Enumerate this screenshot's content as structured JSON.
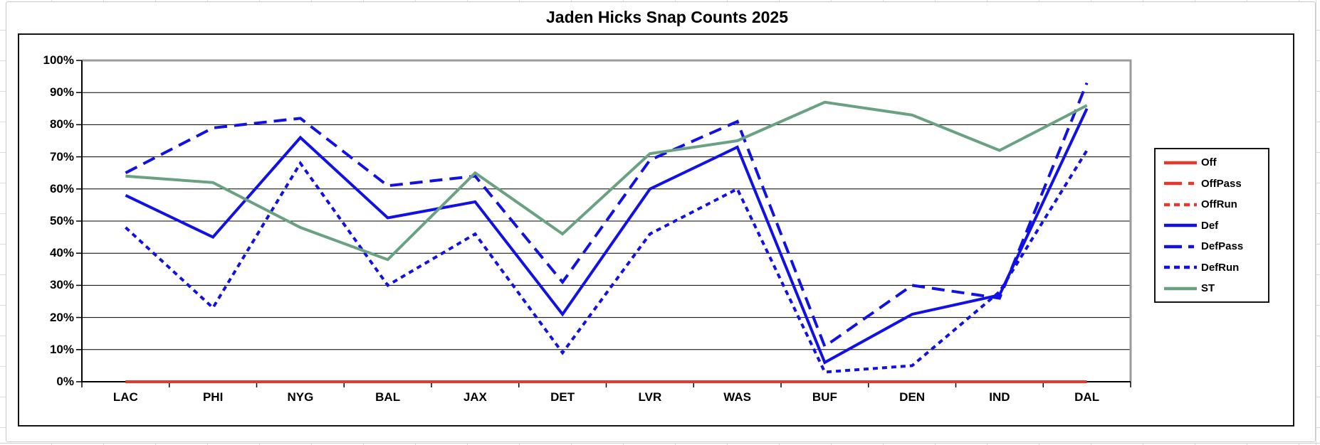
{
  "title": "Jaden Hicks Snap Counts 2025",
  "chart_data": {
    "type": "line",
    "title": "Jaden Hicks Snap Counts 2025",
    "categories": [
      "LAC",
      "PHI",
      "NYG",
      "BAL",
      "JAX",
      "DET",
      "LVR",
      "WAS",
      "BUF",
      "DEN",
      "IND",
      "DAL"
    ],
    "series": [
      {
        "name": "Off",
        "color": "#e4392b",
        "dash": "solid",
        "values": [
          0,
          0,
          0,
          0,
          0,
          0,
          0,
          0,
          0,
          0,
          0,
          0
        ]
      },
      {
        "name": "OffPass",
        "color": "#e4392b",
        "dash": "long-dash",
        "values": [
          0,
          0,
          0,
          0,
          0,
          0,
          0,
          0,
          0,
          0,
          0,
          0
        ]
      },
      {
        "name": "OffRun",
        "color": "#e4392b",
        "dash": "short-dash",
        "values": [
          0,
          0,
          0,
          0,
          0,
          0,
          0,
          0,
          0,
          0,
          0,
          0
        ]
      },
      {
        "name": "Def",
        "color": "#1111e6",
        "dash": "solid",
        "values": [
          58,
          45,
          76,
          51,
          56,
          21,
          60,
          73,
          6,
          21,
          27,
          85
        ]
      },
      {
        "name": "DefPass",
        "color": "#1111e6",
        "dash": "long-dash",
        "values": [
          65,
          79,
          82,
          61,
          64,
          31,
          69,
          81,
          11,
          30,
          26,
          93
        ]
      },
      {
        "name": "DefRun",
        "color": "#1111e6",
        "dash": "short-dash",
        "values": [
          48,
          23,
          68,
          30,
          46,
          9,
          46,
          60,
          3,
          5,
          28,
          72
        ]
      },
      {
        "name": "ST",
        "color": "#69a182",
        "dash": "solid",
        "values": [
          64,
          62,
          48,
          38,
          65,
          46,
          71,
          75,
          87,
          83,
          72,
          86
        ]
      }
    ],
    "y_axis": {
      "min": 0,
      "max": 100,
      "step": 10,
      "tick_labels": [
        "0%",
        "10%",
        "20%",
        "30%",
        "40%",
        "50%",
        "60%",
        "70%",
        "80%",
        "90%",
        "100%"
      ]
    },
    "x_axis": {
      "tick_labels": [
        "LAC",
        "PHI",
        "NYG",
        "BAL",
        "JAX",
        "DET",
        "LVR",
        "WAS",
        "BUF",
        "DEN",
        "IND",
        "DAL"
      ]
    },
    "legend_position": "right",
    "grid": true
  },
  "colors": {
    "offense": "#e4392b",
    "defense": "#1111e6",
    "special_teams": "#69a182",
    "gridline": "#000000",
    "plot_border": "#9b9b9b"
  }
}
